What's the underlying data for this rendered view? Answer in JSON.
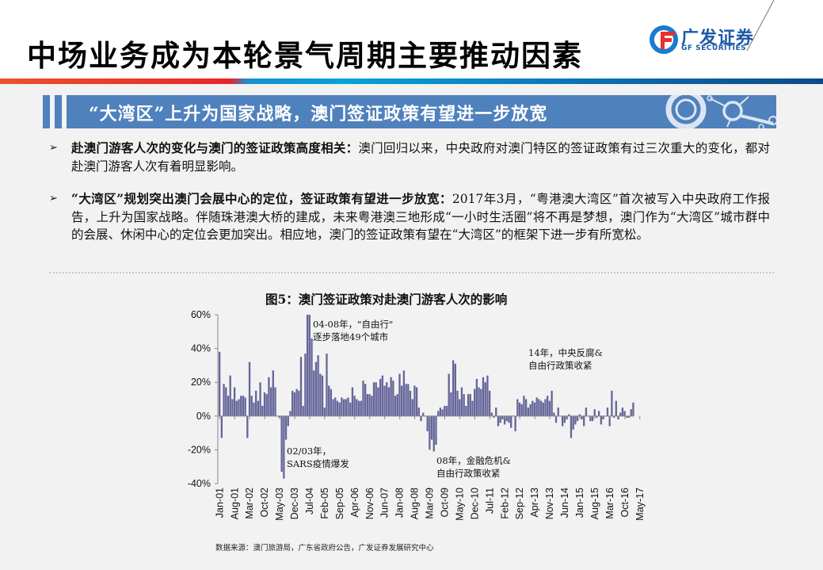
{
  "header": {
    "title": "中场业务成为本轮景气周期主要推动因素",
    "logo": {
      "cn": "广发证券",
      "en": "GF SECURITIES",
      "icon": "gf-logo-icon"
    }
  },
  "section": {
    "banner_title": "“大湾区”上升为国家战略，澳门签证政策有望进一步放宽"
  },
  "bullets": [
    {
      "marker": "➢",
      "lead": "赴澳门游客人次的变化与澳门的签证政策高度相关：",
      "text": "澳门回归以来，中央政府对澳门特区的签证政策有过三次重大的变化，都对赴澳门游客人次有着明显影响。"
    },
    {
      "marker": "➢",
      "lead": "“大湾区”规划突出澳门会展中心的定位，签证政策有望进一步放宽：",
      "text": "2017年3月，“粤港澳大湾区”首次被写入中央政府工作报告，上升为国家战略。伴随珠港澳大桥的建成，未来粤港澳三地形成“一小时生活圈”将不再是梦想，澳门作为“大湾区”城市群中的会展、休闲中心的定位会更加突出。相应地，澳门的签证政策有望在“大湾区”的框架下进一步有所宽松。"
    }
  ],
  "chart": {
    "title": "图5：澳门签证政策对赴澳门游客人次的影响",
    "source": "数据来源：澳门旅游局，广东省政府公告，广发证券发展研究中心"
  },
  "chart_data": {
    "type": "bar",
    "title": "图5：澳门签证政策对赴澳门游客人次的影响",
    "xlabel": "",
    "ylabel": "",
    "ylim": [
      -40,
      60
    ],
    "yticks": [
      "60%",
      "40%",
      "20%",
      "0%",
      "-20%",
      "-40%"
    ],
    "ytick_values": [
      60,
      40,
      20,
      0,
      -20,
      -40
    ],
    "grid": false,
    "legend": null,
    "bar_color": "#65659a",
    "x_start": "Jan-01",
    "x_freq": "monthly",
    "xtick_labels": [
      "Jan-01",
      "Aug-01",
      "Mar-02",
      "Oct-02",
      "May-03",
      "Dec-03",
      "Jul-04",
      "Feb-05",
      "Sep-05",
      "Apr-06",
      "Nov-06",
      "Jun-07",
      "Jan-08",
      "Aug-08",
      "Mar-09",
      "Oct-09",
      "May-10",
      "Dec-10",
      "Jul-11",
      "Feb-12",
      "Sep-12",
      "Apr-13",
      "Nov-13",
      "Jun-14",
      "Jan-15",
      "Aug-15",
      "Mar-16",
      "Oct-16",
      "May-17"
    ],
    "annotations": [
      {
        "text": "04-08年，\"自由行\"",
        "text2": "逐步落地49个城市",
        "near": "2004-2008"
      },
      {
        "text": "02/03年，",
        "text2": "SARS疫情爆发",
        "near": "May-03"
      },
      {
        "text": "08年，金融危机&",
        "text2": "自由行政策收紧",
        "near": "2008-2009"
      },
      {
        "text": "14年，中央反腐&",
        "text2": "自由行政策收紧",
        "near": "2014"
      }
    ],
    "values": [
      38,
      -13,
      19,
      17,
      12,
      24,
      10,
      17,
      9,
      10,
      12,
      12,
      11,
      -13,
      32,
      12,
      8,
      15,
      9,
      20,
      6,
      14,
      13,
      23,
      17,
      27,
      17,
      0,
      -1,
      -33,
      -37,
      -14,
      -6,
      3,
      15,
      14,
      16,
      15,
      35,
      6,
      37,
      60,
      60,
      46,
      27,
      32,
      36,
      25,
      24,
      5,
      37,
      18,
      16,
      10,
      11,
      9,
      8,
      11,
      10,
      10,
      11,
      8,
      17,
      12,
      10,
      9,
      9,
      21,
      19,
      13,
      13,
      12,
      20,
      20,
      17,
      22,
      24,
      18,
      20,
      17,
      23,
      21,
      12,
      13,
      25,
      18,
      27,
      19,
      19,
      15,
      10,
      18,
      17,
      5,
      -3,
      2,
      0,
      -9,
      -20,
      -14,
      -21,
      -17,
      3,
      5,
      4,
      6,
      6,
      25,
      14,
      33,
      31,
      15,
      10,
      17,
      13,
      6,
      13,
      13,
      9,
      16,
      22,
      17,
      16,
      23,
      20,
      24,
      15,
      2,
      -1,
      5,
      -6,
      -4,
      -2,
      -5,
      -3,
      -4,
      -7,
      0,
      -9,
      10,
      8,
      7,
      12,
      10,
      5,
      7,
      9,
      8,
      11,
      10,
      9,
      8,
      10,
      12,
      9,
      15,
      2,
      -4,
      5,
      0,
      -6,
      -4,
      -2,
      1,
      -13,
      -8,
      -5,
      -3,
      1,
      -2,
      -6,
      5,
      0,
      -3,
      -3,
      4,
      -1,
      3,
      -5,
      -2,
      0,
      5,
      -6,
      15,
      -1,
      9,
      -2,
      2,
      5,
      3,
      -1,
      -1,
      4,
      8
    ]
  }
}
